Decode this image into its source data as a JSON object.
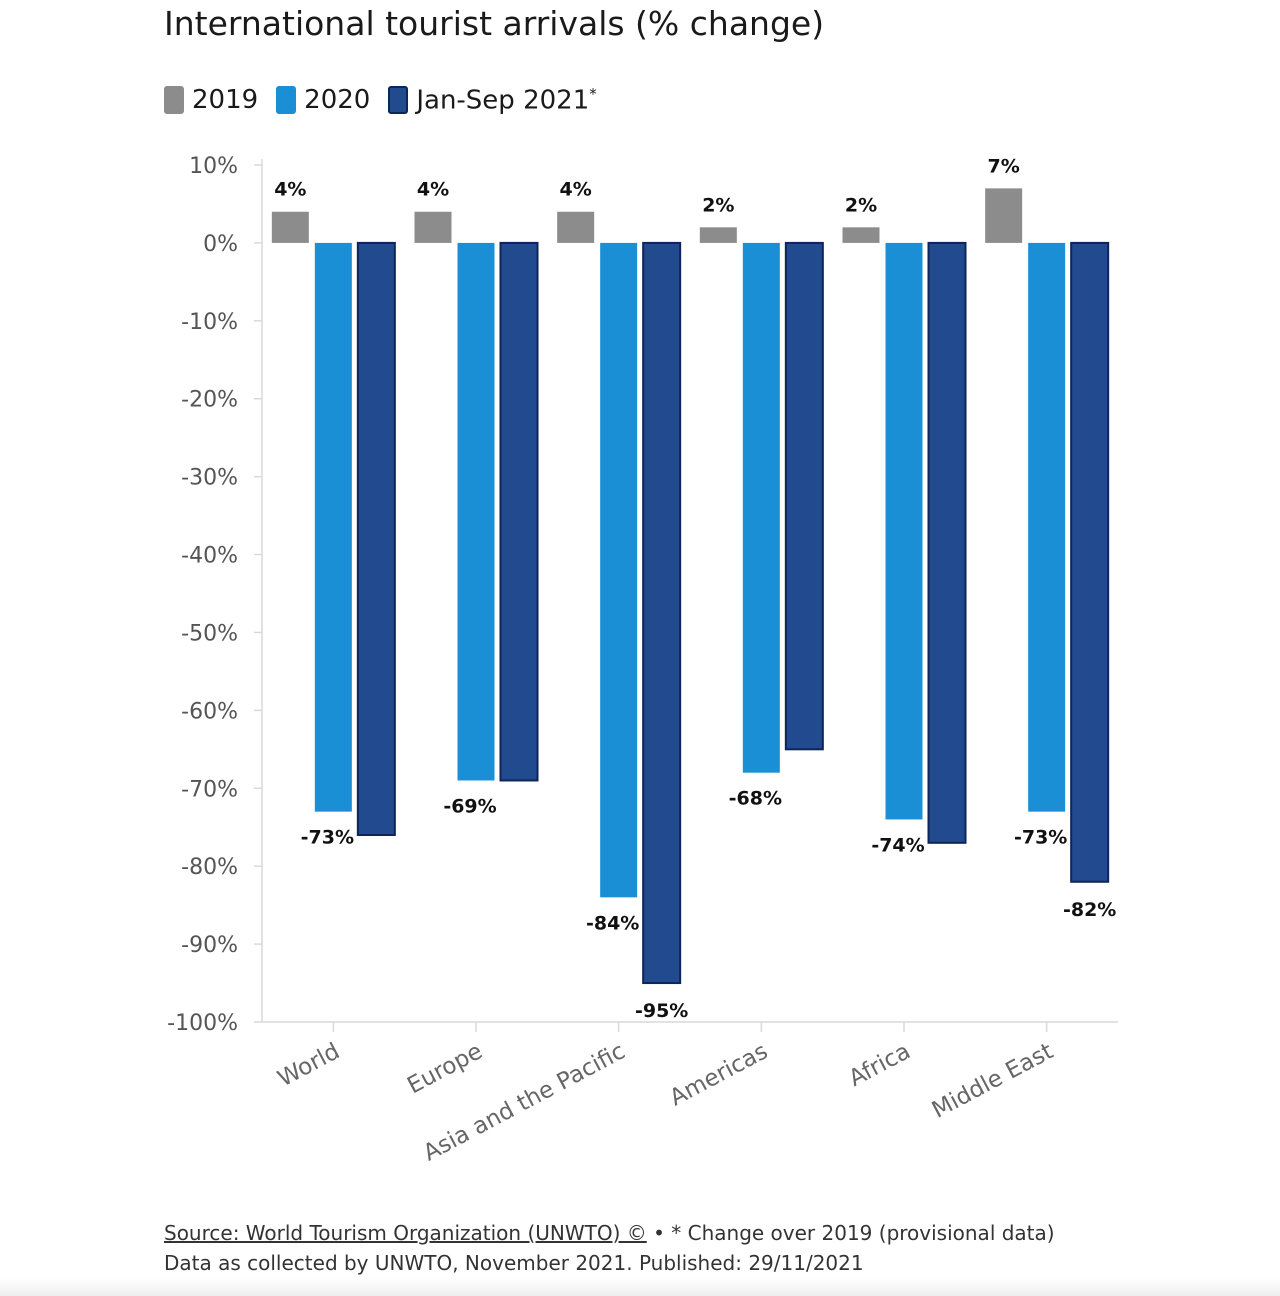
{
  "chart_data": {
    "type": "bar",
    "title": "International tourist arrivals (% change)",
    "categories": [
      "World",
      "Europe",
      "Asia and the Pacific",
      "Americas",
      "Africa",
      "Middle East"
    ],
    "series": [
      {
        "name": "2019",
        "values": [
          4,
          4,
          4,
          2,
          2,
          7
        ],
        "labels": [
          "4%",
          "4%",
          "4%",
          "2%",
          "2%",
          "7%"
        ],
        "color": "#8c8c8c",
        "border": "#8c8c8c"
      },
      {
        "name": "2020",
        "values": [
          -73,
          -69,
          -84,
          -68,
          -74,
          -73
        ],
        "labels": [
          "-73%",
          "-69%",
          "-84%",
          "-68%",
          "-74%",
          "-73%"
        ],
        "color": "#1a8fd6",
        "border": "#1a8fd6"
      },
      {
        "name": "Jan-Sep 2021",
        "values": [
          -76,
          -69,
          -95,
          -65,
          -77,
          -82
        ],
        "labels": [
          "",
          "",
          "-95%",
          "",
          "",
          "-82%"
        ],
        "color": "#214a8f",
        "border": "#0d2558"
      }
    ],
    "legend_note_marker": "*",
    "ylim": [
      -100,
      10
    ],
    "yticks": [
      10,
      0,
      -10,
      -20,
      -30,
      -40,
      -50,
      -60,
      -70,
      -80,
      -90,
      -100
    ],
    "ytick_labels": [
      "10%",
      "0%",
      "-10%",
      "-20%",
      "-30%",
      "-40%",
      "-50%",
      "-60%",
      "-70%",
      "-80%",
      "-90%",
      "-100%"
    ],
    "xlabel": "",
    "ylabel": "",
    "legend_position": "top-left"
  },
  "footer": {
    "source": "Source: World Tourism Organization (UNWTO) ©",
    "note": " • * Change over 2019 (provisional data)",
    "collected": "Data as collected by UNWTO, November 2021. Published: 29/11/2021"
  }
}
